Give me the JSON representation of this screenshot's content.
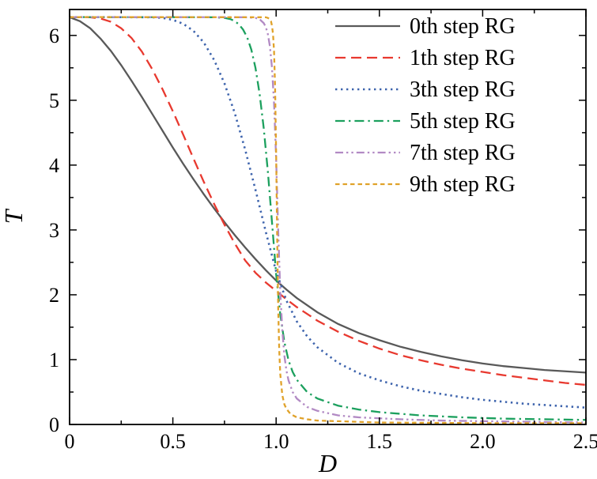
{
  "figure": {
    "background": "#ffffff",
    "frame_color": "#000000",
    "text_color": "#000000"
  },
  "chart_data": {
    "type": "line",
    "title": "",
    "xlabel": "D",
    "ylabel": "T",
    "xlim": [
      0,
      2.5
    ],
    "ylim": [
      0,
      6.4
    ],
    "grid": false,
    "legend_position": "top-right",
    "x_ticks": {
      "major": [
        0,
        0.5,
        1.0,
        1.5,
        2.0,
        2.5
      ],
      "labels": [
        "0",
        "0.5",
        "1.0",
        "1.5",
        "2.0",
        "2.5"
      ],
      "minor": [
        0.25,
        0.75,
        1.25,
        1.75,
        2.25
      ]
    },
    "y_ticks": {
      "major": [
        0,
        1,
        2,
        3,
        4,
        5,
        6
      ],
      "labels": [
        "0",
        "1",
        "2",
        "3",
        "4",
        "5",
        "6"
      ],
      "minor": [
        0.5,
        1.5,
        2.5,
        3.5,
        4.5,
        5.5
      ]
    },
    "series": [
      {
        "name": "0th step RG",
        "color": "#595959",
        "dash": "solid",
        "points": [
          [
            0,
            6.28
          ],
          [
            0.05,
            6.22
          ],
          [
            0.1,
            6.11
          ],
          [
            0.15,
            5.95
          ],
          [
            0.2,
            5.76
          ],
          [
            0.25,
            5.54
          ],
          [
            0.3,
            5.3
          ],
          [
            0.35,
            5.05
          ],
          [
            0.4,
            4.79
          ],
          [
            0.45,
            4.53
          ],
          [
            0.5,
            4.27
          ],
          [
            0.55,
            4.02
          ],
          [
            0.6,
            3.78
          ],
          [
            0.65,
            3.55
          ],
          [
            0.7,
            3.33
          ],
          [
            0.75,
            3.12
          ],
          [
            0.8,
            2.92
          ],
          [
            0.85,
            2.73
          ],
          [
            0.9,
            2.55
          ],
          [
            0.95,
            2.38
          ],
          [
            1.0,
            2.22
          ],
          [
            1.05,
            2.08
          ],
          [
            1.1,
            1.95
          ],
          [
            1.2,
            1.73
          ],
          [
            1.3,
            1.55
          ],
          [
            1.4,
            1.41
          ],
          [
            1.5,
            1.3
          ],
          [
            1.6,
            1.2
          ],
          [
            1.7,
            1.12
          ],
          [
            1.8,
            1.05
          ],
          [
            1.9,
            0.99
          ],
          [
            2.0,
            0.94
          ],
          [
            2.1,
            0.9
          ],
          [
            2.2,
            0.87
          ],
          [
            2.3,
            0.84
          ],
          [
            2.4,
            0.82
          ],
          [
            2.5,
            0.8
          ]
        ]
      },
      {
        "name": "1th step RG",
        "color": "#e8392f",
        "dash": "dashed",
        "points": [
          [
            0,
            6.283
          ],
          [
            0.1,
            6.28
          ],
          [
            0.15,
            6.26
          ],
          [
            0.2,
            6.21
          ],
          [
            0.25,
            6.11
          ],
          [
            0.3,
            5.96
          ],
          [
            0.35,
            5.75
          ],
          [
            0.4,
            5.48
          ],
          [
            0.45,
            5.17
          ],
          [
            0.5,
            4.83
          ],
          [
            0.55,
            4.47
          ],
          [
            0.6,
            4.1
          ],
          [
            0.65,
            3.74
          ],
          [
            0.7,
            3.4
          ],
          [
            0.75,
            3.08
          ],
          [
            0.8,
            2.79
          ],
          [
            0.85,
            2.53
          ],
          [
            0.9,
            2.34
          ],
          [
            0.95,
            2.19
          ],
          [
            1.0,
            2.06
          ],
          [
            1.05,
            1.93
          ],
          [
            1.1,
            1.81
          ],
          [
            1.2,
            1.6
          ],
          [
            1.3,
            1.43
          ],
          [
            1.4,
            1.29
          ],
          [
            1.5,
            1.17
          ],
          [
            1.6,
            1.07
          ],
          [
            1.7,
            0.99
          ],
          [
            1.8,
            0.92
          ],
          [
            1.9,
            0.86
          ],
          [
            2.0,
            0.81
          ],
          [
            2.1,
            0.76
          ],
          [
            2.2,
            0.72
          ],
          [
            2.3,
            0.68
          ],
          [
            2.4,
            0.64
          ],
          [
            2.5,
            0.61
          ]
        ]
      },
      {
        "name": "3th step RG",
        "color": "#3e64ad",
        "dash": "dotted",
        "points": [
          [
            0,
            6.283
          ],
          [
            0.4,
            6.28
          ],
          [
            0.45,
            6.27
          ],
          [
            0.5,
            6.24
          ],
          [
            0.55,
            6.18
          ],
          [
            0.6,
            6.07
          ],
          [
            0.65,
            5.89
          ],
          [
            0.7,
            5.62
          ],
          [
            0.75,
            5.26
          ],
          [
            0.8,
            4.8
          ],
          [
            0.85,
            4.24
          ],
          [
            0.9,
            3.62
          ],
          [
            0.95,
            2.97
          ],
          [
            1.0,
            2.36
          ],
          [
            1.05,
            1.91
          ],
          [
            1.1,
            1.59
          ],
          [
            1.15,
            1.36
          ],
          [
            1.2,
            1.19
          ],
          [
            1.3,
            0.95
          ],
          [
            1.4,
            0.79
          ],
          [
            1.5,
            0.68
          ],
          [
            1.6,
            0.59
          ],
          [
            1.7,
            0.52
          ],
          [
            1.8,
            0.47
          ],
          [
            1.9,
            0.42
          ],
          [
            2.0,
            0.38
          ],
          [
            2.1,
            0.35
          ],
          [
            2.2,
            0.32
          ],
          [
            2.3,
            0.3
          ],
          [
            2.4,
            0.28
          ],
          [
            2.5,
            0.26
          ]
        ]
      },
      {
        "name": "5th step RG",
        "color": "#1ca05e",
        "dash": "dash-dot",
        "points": [
          [
            0,
            6.283
          ],
          [
            0.7,
            6.28
          ],
          [
            0.75,
            6.27
          ],
          [
            0.78,
            6.25
          ],
          [
            0.8,
            6.22
          ],
          [
            0.82,
            6.17
          ],
          [
            0.84,
            6.09
          ],
          [
            0.86,
            5.97
          ],
          [
            0.88,
            5.78
          ],
          [
            0.9,
            5.5
          ],
          [
            0.92,
            5.1
          ],
          [
            0.94,
            4.57
          ],
          [
            0.96,
            3.9
          ],
          [
            0.98,
            3.12
          ],
          [
            1.0,
            2.32
          ],
          [
            1.02,
            1.7
          ],
          [
            1.04,
            1.27
          ],
          [
            1.06,
            0.99
          ],
          [
            1.08,
            0.81
          ],
          [
            1.1,
            0.69
          ],
          [
            1.15,
            0.5
          ],
          [
            1.2,
            0.4
          ],
          [
            1.3,
            0.29
          ],
          [
            1.4,
            0.23
          ],
          [
            1.5,
            0.19
          ],
          [
            1.7,
            0.14
          ],
          [
            1.9,
            0.11
          ],
          [
            2.1,
            0.09
          ],
          [
            2.3,
            0.08
          ],
          [
            2.5,
            0.07
          ]
        ]
      },
      {
        "name": "7th step RG",
        "color": "#b28ac4",
        "dash": "dash-dot-dot",
        "points": [
          [
            0,
            6.283
          ],
          [
            0.85,
            6.28
          ],
          [
            0.9,
            6.27
          ],
          [
            0.92,
            6.25
          ],
          [
            0.94,
            6.19
          ],
          [
            0.95,
            6.13
          ],
          [
            0.96,
            6.02
          ],
          [
            0.97,
            5.83
          ],
          [
            0.98,
            5.5
          ],
          [
            0.99,
            4.95
          ],
          [
            1.0,
            4.1
          ],
          [
            1.005,
            3.55
          ],
          [
            1.01,
            3.0
          ],
          [
            1.02,
            2.05
          ],
          [
            1.03,
            1.45
          ],
          [
            1.04,
            1.06
          ],
          [
            1.05,
            0.83
          ],
          [
            1.06,
            0.68
          ],
          [
            1.08,
            0.5
          ],
          [
            1.1,
            0.4
          ],
          [
            1.15,
            0.27
          ],
          [
            1.2,
            0.21
          ],
          [
            1.3,
            0.14
          ],
          [
            1.4,
            0.11
          ],
          [
            1.6,
            0.08
          ],
          [
            1.8,
            0.06
          ],
          [
            2.0,
            0.05
          ],
          [
            2.25,
            0.04
          ],
          [
            2.5,
            0.03
          ]
        ]
      },
      {
        "name": "9th step RG",
        "color": "#e0a22a",
        "dash": "short-dash",
        "points": [
          [
            0,
            6.283
          ],
          [
            0.95,
            6.28
          ],
          [
            0.96,
            6.27
          ],
          [
            0.97,
            6.25
          ],
          [
            0.975,
            6.22
          ],
          [
            0.98,
            6.15
          ],
          [
            0.985,
            6.02
          ],
          [
            0.99,
            5.75
          ],
          [
            0.995,
            5.2
          ],
          [
            1.0,
            4.2
          ],
          [
            1.005,
            2.9
          ],
          [
            1.01,
            1.8
          ],
          [
            1.015,
            1.15
          ],
          [
            1.02,
            0.78
          ],
          [
            1.03,
            0.45
          ],
          [
            1.04,
            0.31
          ],
          [
            1.05,
            0.24
          ],
          [
            1.07,
            0.16
          ],
          [
            1.1,
            0.11
          ],
          [
            1.15,
            0.08
          ],
          [
            1.2,
            0.06
          ],
          [
            1.3,
            0.05
          ],
          [
            1.5,
            0.03
          ],
          [
            1.75,
            0.025
          ],
          [
            2.0,
            0.02
          ],
          [
            2.5,
            0.02
          ]
        ]
      }
    ]
  }
}
